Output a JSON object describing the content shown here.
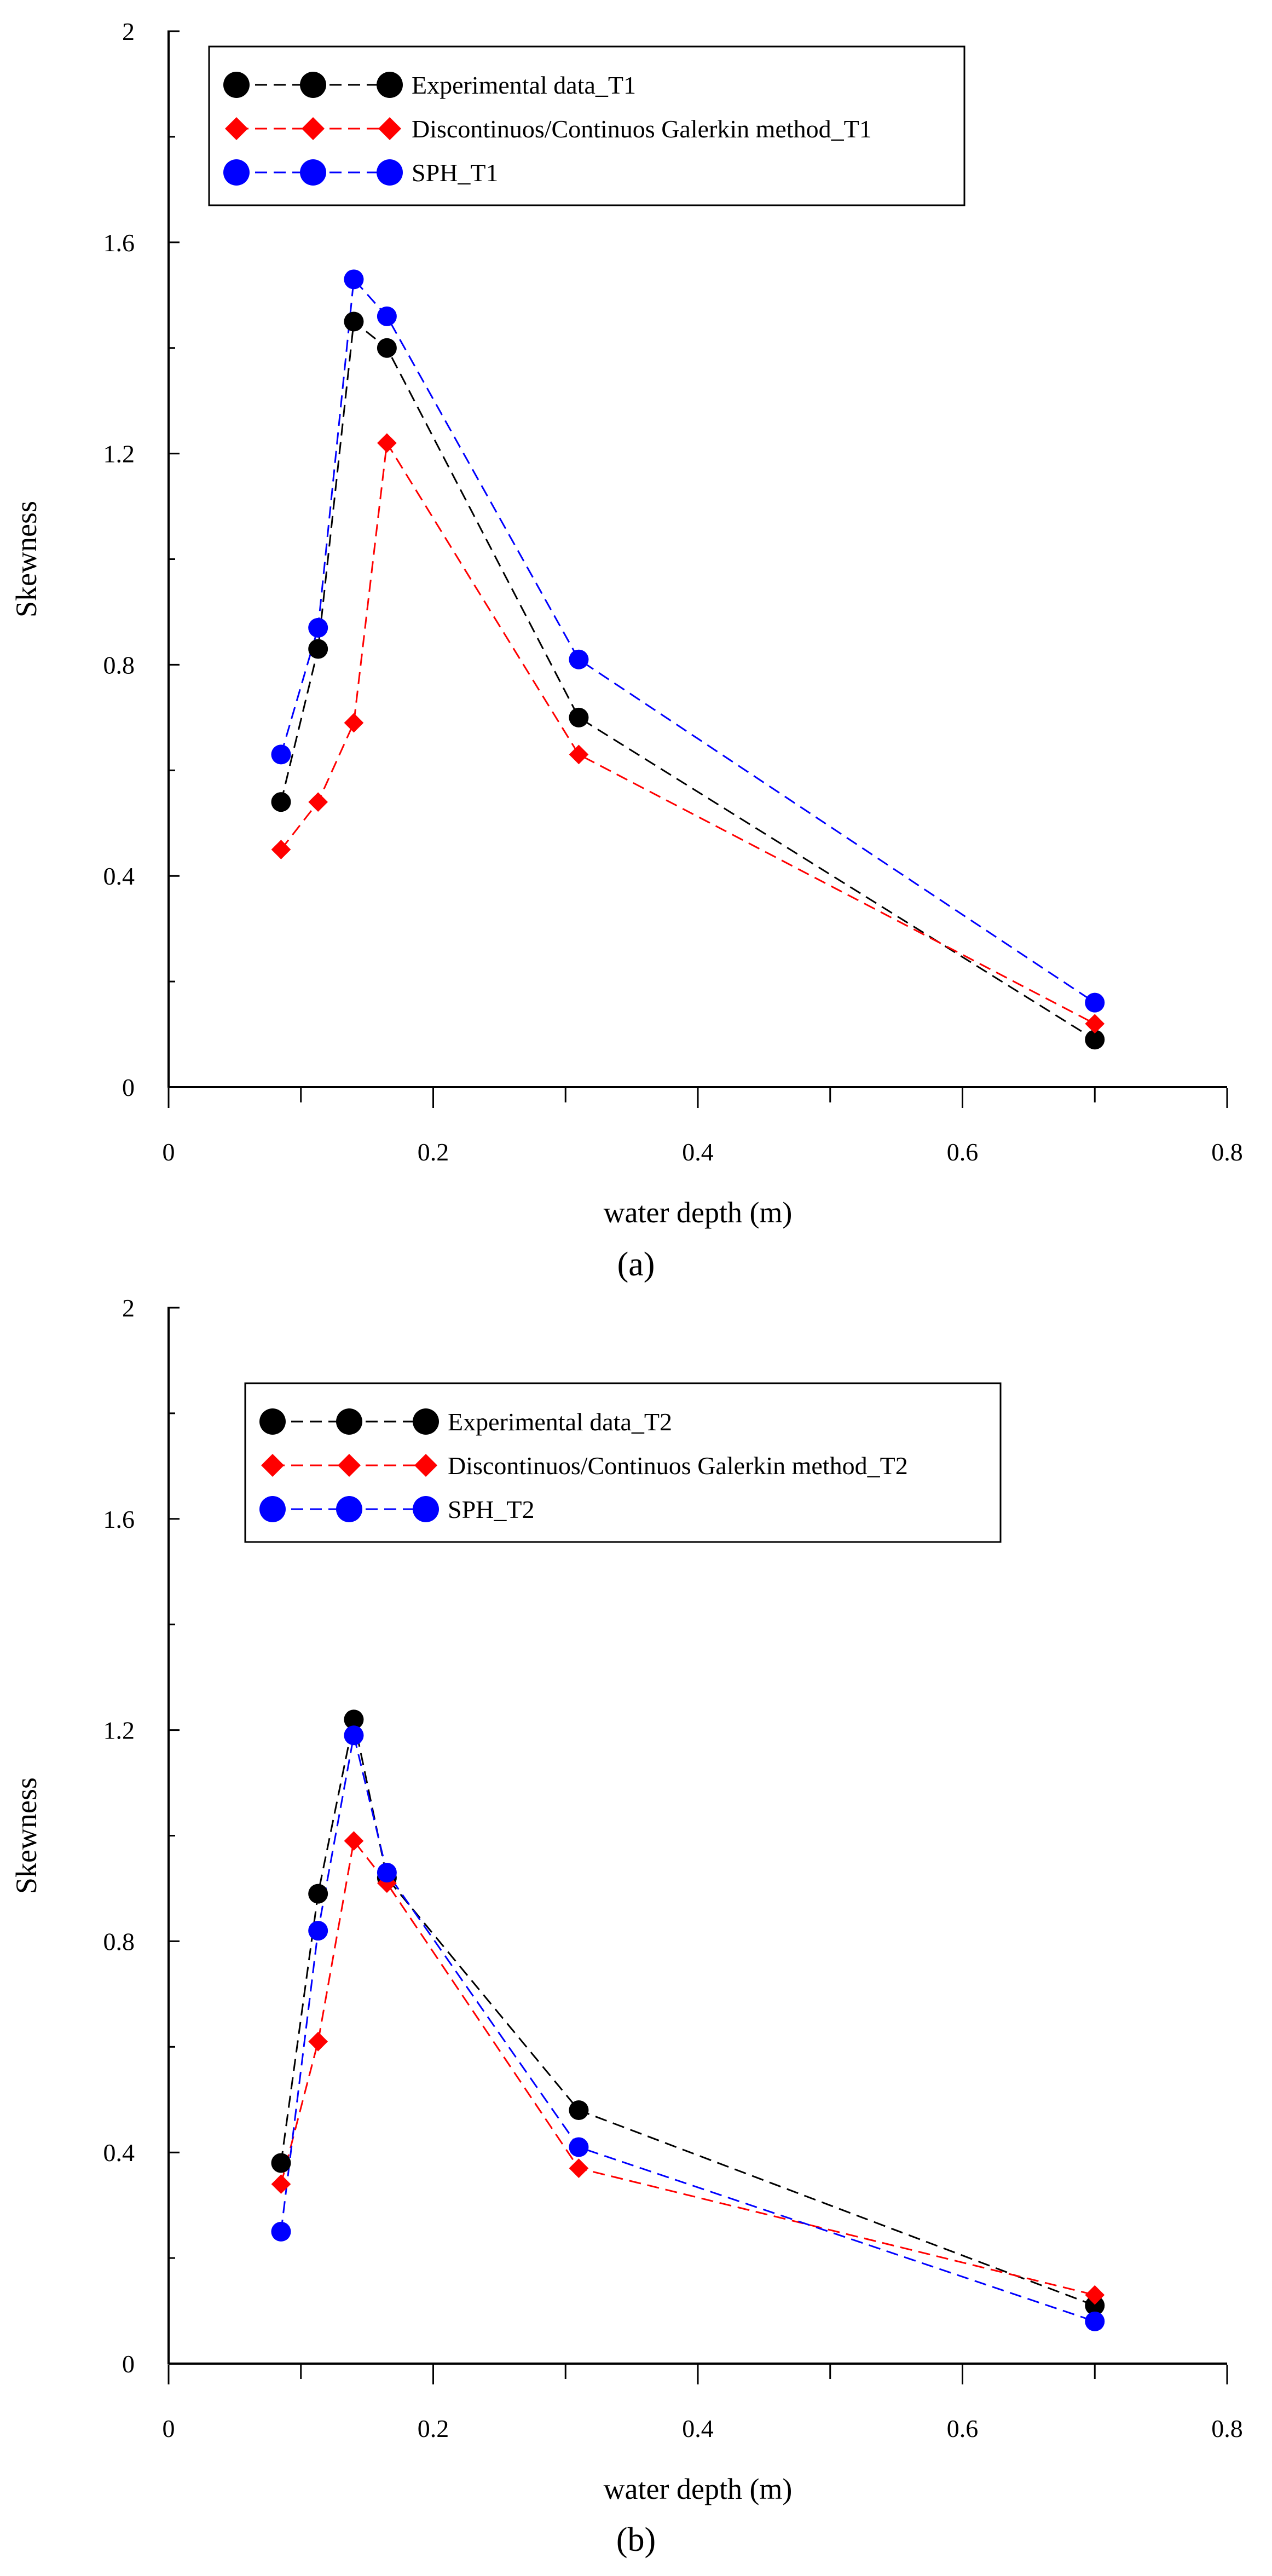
{
  "figure": {
    "panel_a_label": "(a)",
    "panel_b_label": "(b)"
  },
  "chart_data": [
    {
      "type": "line",
      "panel": "a",
      "title": "",
      "xlabel": "water depth (m)",
      "ylabel": "Skewness",
      "xlim": [
        0,
        0.8
      ],
      "ylim": [
        0,
        2
      ],
      "xticks": [
        "0",
        "0.2",
        "0.4",
        "0.6",
        "0.8"
      ],
      "yticks": [
        "0",
        "0.4",
        "0.8",
        "1.2",
        "1.6",
        "2"
      ],
      "legend_position": "top-left",
      "series": [
        {
          "name": "Experimental data_T1",
          "color": "#000000",
          "marker": "circle",
          "x": [
            0.085,
            0.113,
            0.14,
            0.165,
            0.31,
            0.7
          ],
          "y": [
            0.54,
            0.83,
            1.45,
            1.4,
            0.7,
            0.09
          ]
        },
        {
          "name": "Discontinuos/Continuos Galerkin method_T1",
          "color": "#ff0000",
          "marker": "diamond",
          "x": [
            0.085,
            0.113,
            0.14,
            0.165,
            0.31,
            0.7
          ],
          "y": [
            0.45,
            0.54,
            0.69,
            1.22,
            0.63,
            0.12
          ]
        },
        {
          "name": "SPH_T1",
          "color": "#0000ff",
          "marker": "circle",
          "x": [
            0.085,
            0.113,
            0.14,
            0.165,
            0.31,
            0.7
          ],
          "y": [
            0.63,
            0.87,
            1.53,
            1.46,
            0.81,
            0.16
          ]
        }
      ]
    },
    {
      "type": "line",
      "panel": "b",
      "title": "",
      "xlabel": "water depth (m)",
      "ylabel": "Skewness",
      "xlim": [
        0,
        0.8
      ],
      "ylim": [
        0,
        2
      ],
      "xticks": [
        "0",
        "0.2",
        "0.4",
        "0.6",
        "0.8"
      ],
      "yticks": [
        "0",
        "0.4",
        "0.8",
        "1.2",
        "1.6",
        "2"
      ],
      "legend_position": "top-center",
      "series": [
        {
          "name": "Experimental data_T2",
          "color": "#000000",
          "marker": "circle",
          "x": [
            0.085,
            0.113,
            0.14,
            0.165,
            0.31,
            0.7
          ],
          "y": [
            0.38,
            0.89,
            1.22,
            0.92,
            0.48,
            0.11
          ]
        },
        {
          "name": "Discontinuos/Continuos Galerkin method_T2",
          "color": "#ff0000",
          "marker": "diamond",
          "x": [
            0.085,
            0.113,
            0.14,
            0.165,
            0.31,
            0.7
          ],
          "y": [
            0.34,
            0.61,
            0.99,
            0.91,
            0.37,
            0.13
          ]
        },
        {
          "name": "SPH_T2",
          "color": "#0000ff",
          "marker": "circle",
          "x": [
            0.085,
            0.113,
            0.14,
            0.165,
            0.31,
            0.7
          ],
          "y": [
            0.25,
            0.82,
            1.19,
            0.93,
            0.41,
            0.08
          ]
        }
      ]
    }
  ]
}
